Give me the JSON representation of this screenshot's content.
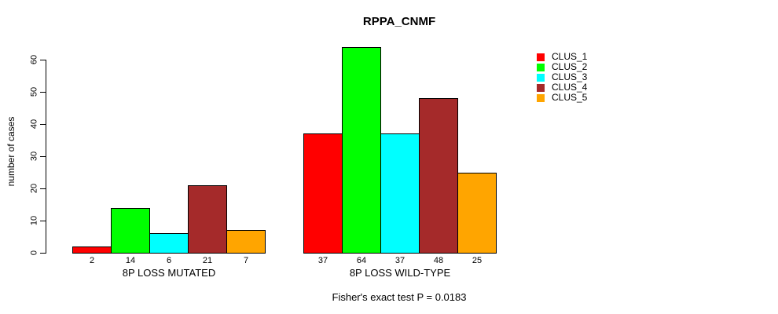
{
  "chart_data": {
    "type": "bar",
    "title": "RPPA_CNMF",
    "ylabel": "number of cases",
    "caption": "Fisher's exact test P = 0.0183",
    "categories": [
      "8P LOSS MUTATED",
      "8P LOSS WILD-TYPE"
    ],
    "series": [
      {
        "name": "CLUS_1",
        "color": "#ff0000",
        "values": [
          2,
          37
        ]
      },
      {
        "name": "CLUS_2",
        "color": "#00ff00",
        "values": [
          14,
          64
        ]
      },
      {
        "name": "CLUS_3",
        "color": "#00ffff",
        "values": [
          6,
          37
        ]
      },
      {
        "name": "CLUS_4",
        "color": "#a52a2a",
        "values": [
          21,
          48
        ]
      },
      {
        "name": "CLUS_5",
        "color": "#ffa500",
        "values": [
          7,
          25
        ]
      }
    ],
    "yticks": [
      0,
      10,
      20,
      30,
      40,
      50,
      60
    ],
    "ylim": [
      0,
      64
    ],
    "grid": false,
    "bars_labeled_with_values": true,
    "legend_position": "top-right",
    "axis_color": "#000000",
    "bar_border_color": "#000000"
  }
}
